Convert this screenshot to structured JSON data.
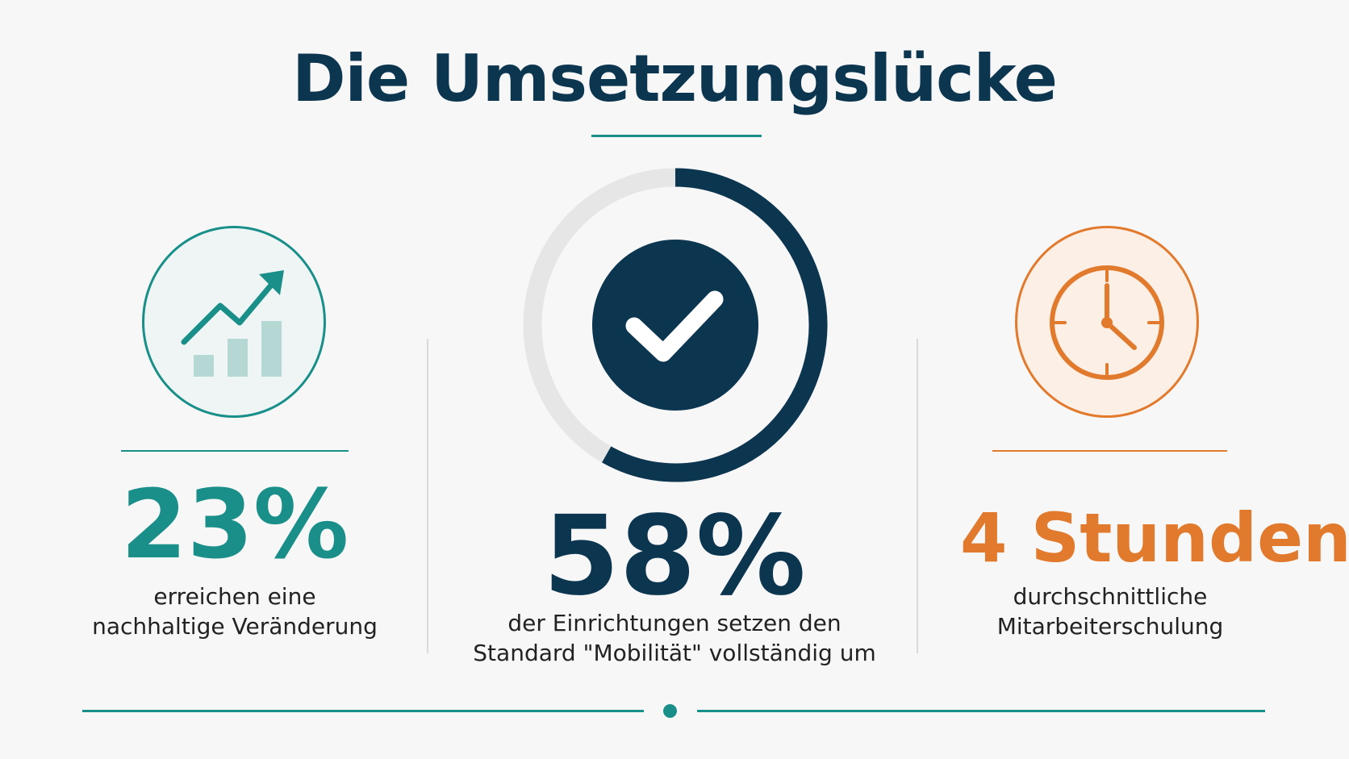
{
  "title": "Die Umsetzungslücke",
  "colors": {
    "navy": "#0c3550",
    "teal": "#1a8f8a",
    "orange": "#e27a2e",
    "ring_track": "#e6e6e6"
  },
  "stats": [
    {
      "value": "23%",
      "label_lines": [
        "erreichen eine",
        "nachhaltige Veränderung"
      ],
      "icon": "trend-chart-icon",
      "color": "teal"
    },
    {
      "value": "58%",
      "label_lines": [
        "der Einrichtungen setzen den",
        "Standard \"Mobilität\" vollständig um"
      ],
      "icon": "checkmark-icon",
      "color": "navy",
      "ring_fraction": 0.58
    },
    {
      "value": "4 Stunden",
      "label_lines": [
        "durchschnittliche",
        "Mitarbeiterschulung"
      ],
      "icon": "clock-icon",
      "color": "orange"
    }
  ]
}
